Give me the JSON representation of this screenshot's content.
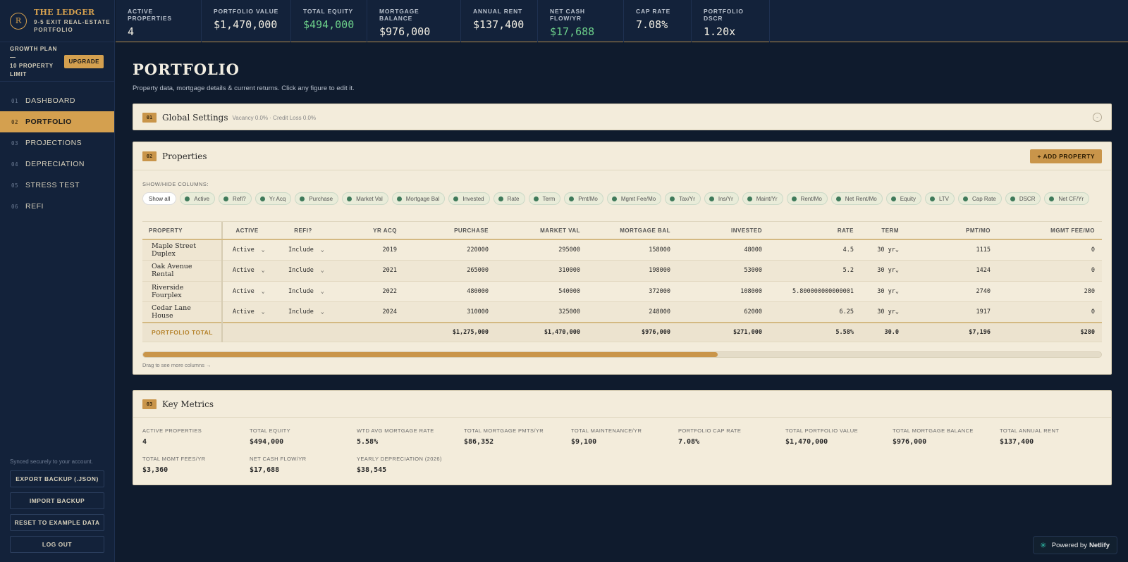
{
  "brand": {
    "logo_letter": "R",
    "title": "THE LEDGER",
    "subtitle_line1": "9-5 EXIT REAL-ESTATE",
    "subtitle_line2": "PORTFOLIO"
  },
  "plan": {
    "text_line1": "GROWTH PLAN —",
    "text_line2": "10 PROPERTY",
    "text_line3": "LIMIT",
    "upgrade_label": "UPGRADE"
  },
  "nav": [
    {
      "num": "01",
      "label": "DASHBOARD"
    },
    {
      "num": "02",
      "label": "PORTFOLIO"
    },
    {
      "num": "03",
      "label": "PROJECTIONS"
    },
    {
      "num": "04",
      "label": "DEPRECIATION"
    },
    {
      "num": "05",
      "label": "STRESS TEST"
    },
    {
      "num": "06",
      "label": "REFI"
    }
  ],
  "sidebar_footer": {
    "synced": "Synced securely to your account.",
    "export": "EXPORT BACKUP (.JSON)",
    "import": "IMPORT BACKUP",
    "reset": "RESET TO EXAMPLE DATA",
    "logout": "LOG OUT"
  },
  "stats": [
    {
      "label": "ACTIVE PROPERTIES",
      "value": "4"
    },
    {
      "label": "PORTFOLIO VALUE",
      "value": "$1,470,000"
    },
    {
      "label": "TOTAL EQUITY",
      "value": "$494,000"
    },
    {
      "label": "MORTGAGE BALANCE",
      "value": "$976,000"
    },
    {
      "label": "ANNUAL RENT",
      "value": "$137,400"
    },
    {
      "label": "NET CASH FLOW/YR",
      "value": "$17,688"
    },
    {
      "label": "CAP RATE",
      "value": "7.08%"
    },
    {
      "label": "PORTFOLIO DSCR",
      "value": "1.20x"
    }
  ],
  "page": {
    "title": "PORTFOLIO",
    "subtitle": "Property data, mortgage details & current returns. Click any figure to edit it."
  },
  "global_settings": {
    "num": "01",
    "title": "Global Settings",
    "note": "Vacancy 0.0% · Credit Loss 0.0%",
    "collapse_symbol": "-"
  },
  "properties": {
    "num": "02",
    "title": "Properties",
    "add_label": "+ ADD PROPERTY",
    "columns_label": "SHOW/HIDE COLUMNS:",
    "show_all": "Show all",
    "chips": [
      "Active",
      "Refi?",
      "Yr Acq",
      "Purchase",
      "Market Val",
      "Mortgage Bal",
      "Invested",
      "Rate",
      "Term",
      "Pmt/Mo",
      "Mgmt Fee/Mo",
      "Tax/Yr",
      "Ins/Yr",
      "Maint/Yr",
      "Rent/Mo",
      "Net Rent/Mo",
      "Equity",
      "LTV",
      "Cap Rate",
      "DSCR",
      "Net CF/Yr"
    ],
    "headers": [
      "PROPERTY",
      "ACTIVE",
      "REFI?",
      "YR ACQ",
      "PURCHASE",
      "MARKET VAL",
      "MORTGAGE BAL",
      "INVESTED",
      "RATE",
      "TERM",
      "PMT/MO",
      "MGMT FEE/MO"
    ],
    "rows": [
      {
        "name": "Maple Street Duplex",
        "active": "Active",
        "refi": "Include",
        "yr_acq": "2019",
        "purchase": "220000",
        "market_val": "295000",
        "mortgage_bal": "158000",
        "invested": "48000",
        "rate": "4.5",
        "term": "30 yr",
        "pmt": "1115",
        "mgmt": "0"
      },
      {
        "name": "Oak Avenue Rental",
        "active": "Active",
        "refi": "Include",
        "yr_acq": "2021",
        "purchase": "265000",
        "market_val": "310000",
        "mortgage_bal": "198000",
        "invested": "53000",
        "rate": "5.2",
        "term": "30 yr",
        "pmt": "1424",
        "mgmt": "0"
      },
      {
        "name": "Riverside Fourplex",
        "active": "Active",
        "refi": "Include",
        "yr_acq": "2022",
        "purchase": "480000",
        "market_val": "540000",
        "mortgage_bal": "372000",
        "invested": "108000",
        "rate": "5.800000000000001",
        "term": "30 yr",
        "pmt": "2740",
        "mgmt": "280"
      },
      {
        "name": "Cedar Lane House",
        "active": "Active",
        "refi": "Include",
        "yr_acq": "2024",
        "purchase": "310000",
        "market_val": "325000",
        "mortgage_bal": "248000",
        "invested": "62000",
        "rate": "6.25",
        "term": "30 yr",
        "pmt": "1917",
        "mgmt": "0"
      }
    ],
    "total": {
      "label": "PORTFOLIO TOTAL",
      "purchase": "$1,275,000",
      "market_val": "$1,470,000",
      "mortgage_bal": "$976,000",
      "invested": "$271,000",
      "rate": "5.58%",
      "term": "30.0",
      "pmt": "$7,196",
      "mgmt": "$280"
    },
    "scroll_fraction": 0.6,
    "drag_note": "Drag to see more columns →"
  },
  "key_metrics": {
    "num": "03",
    "title": "Key Metrics",
    "items": [
      {
        "label": "ACTIVE PROPERTIES",
        "value": "4"
      },
      {
        "label": "TOTAL EQUITY",
        "value": "$494,000"
      },
      {
        "label": "WTD AVG MORTGAGE RATE",
        "value": "5.58%"
      },
      {
        "label": "TOTAL MORTGAGE PMTS/YR",
        "value": "$86,352"
      },
      {
        "label": "TOTAL MAINTENANCE/YR",
        "value": "$9,100"
      },
      {
        "label": "PORTFOLIO CAP RATE",
        "value": "7.08%"
      },
      {
        "label": "TOTAL PORTFOLIO VALUE",
        "value": "$1,470,000"
      },
      {
        "label": "TOTAL MORTGAGE BALANCE",
        "value": "$976,000"
      },
      {
        "label": "TOTAL ANNUAL RENT",
        "value": "$137,400"
      },
      {
        "label": "TOTAL MGMT FEES/YR",
        "value": "$3,360"
      },
      {
        "label": "NET CASH FLOW/YR",
        "value": "$17,688"
      },
      {
        "label": "YEARLY DEPRECIATION (2026)",
        "value": "$38,545"
      }
    ]
  },
  "netlify": {
    "prefix": "Powered by",
    "brand": "Netlify"
  },
  "colors": {
    "accent": "#d4a04f",
    "positive": "#6ccf8a",
    "bg": "#0f1b2d",
    "panel": "#f3ecdb"
  }
}
